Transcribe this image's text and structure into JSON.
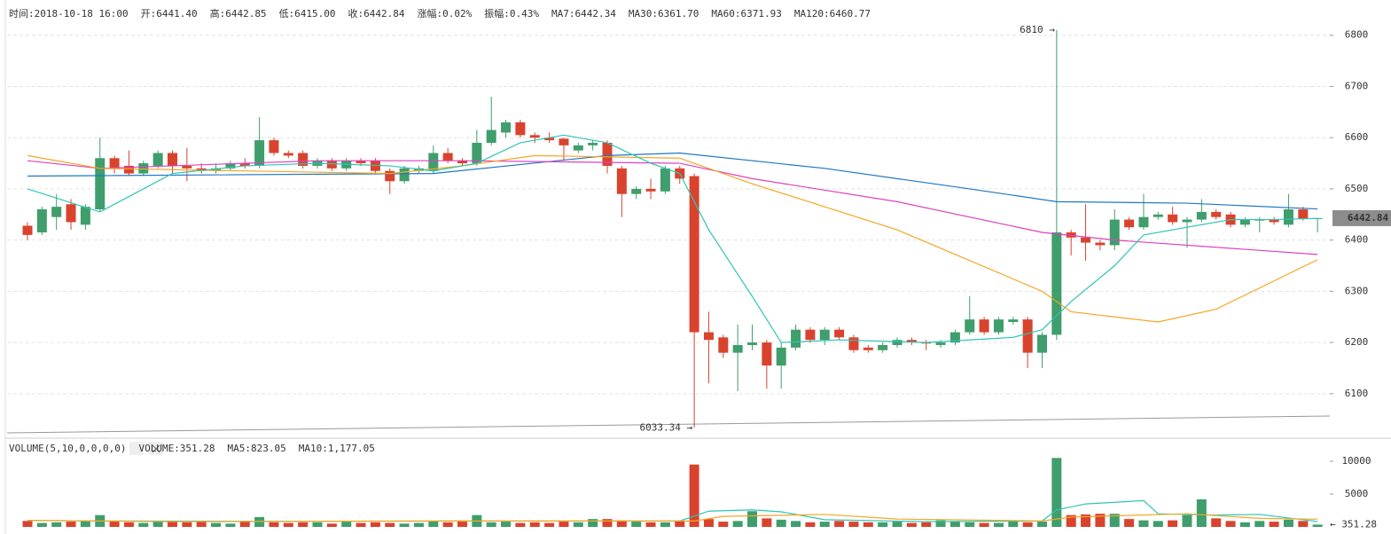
{
  "chart_data": [
    {
      "type": "candlestick",
      "header": [
        {
          "label": "时间:2018-10-18 16:00"
        },
        {
          "label": "开:6441.40"
        },
        {
          "label": "高:6442.85"
        },
        {
          "label": "低:6415.00"
        },
        {
          "label": "收:6442.84"
        },
        {
          "label": "涨幅:",
          "value": "0.02%",
          "color": "#2fa36b"
        },
        {
          "label": "振幅:0.43%"
        },
        {
          "label": "MA7:6442.34",
          "color": "#2ec4b6"
        },
        {
          "label": "MA30:6361.70",
          "color": "#f5a623"
        },
        {
          "label": "MA60:6371.93",
          "color": "#e040c0"
        },
        {
          "label": "MA120:6460.77",
          "color": "#1f77c4"
        }
      ],
      "up_color": "#3f9e6b",
      "down_color": "#d9432e",
      "open": [
        6428,
        6415,
        6445,
        6470,
        6430,
        6460,
        6560,
        6545,
        6530,
        6545,
        6570,
        6545,
        6540,
        6535,
        6540,
        6550,
        6545,
        6595,
        6570,
        6570,
        6545,
        6555,
        6540,
        6555,
        6555,
        6535,
        6515,
        6535,
        6535,
        6570,
        6555,
        6550,
        6590,
        6610,
        6630,
        6605,
        6600,
        6598,
        6575,
        6585,
        6590,
        6540,
        6490,
        6500,
        6495,
        6540,
        6525,
        6220,
        6210,
        6180,
        6195,
        6200,
        6155,
        6190,
        6225,
        6205,
        6225,
        6210,
        6190,
        6185,
        6195,
        6205,
        6200,
        6195,
        6200,
        6220,
        6245,
        6220,
        6240,
        6245,
        6180,
        6215,
        6415,
        6405,
        6395,
        6390,
        6440,
        6425,
        6445,
        6450,
        6435,
        6440,
        6455,
        6450,
        6430,
        6438,
        6440,
        6430,
        6460,
        6441.4
      ],
      "high": [
        6435,
        6465,
        6490,
        6480,
        6470,
        6600,
        6565,
        6575,
        6555,
        6575,
        6575,
        6580,
        6550,
        6550,
        6555,
        6560,
        6640,
        6600,
        6575,
        6575,
        6560,
        6560,
        6560,
        6560,
        6560,
        6540,
        6545,
        6545,
        6585,
        6580,
        6560,
        6615,
        6680,
        6635,
        6635,
        6610,
        6610,
        6600,
        6590,
        6595,
        6595,
        6545,
        6505,
        6520,
        6545,
        6545,
        6530,
        6260,
        6215,
        6235,
        6235,
        6205,
        6200,
        6235,
        6230,
        6230,
        6230,
        6215,
        6195,
        6200,
        6210,
        6210,
        6205,
        6205,
        6225,
        6290,
        6250,
        6250,
        6250,
        6250,
        6220,
        6810,
        6420,
        6470,
        6400,
        6460,
        6445,
        6490,
        6455,
        6465,
        6445,
        6480,
        6460,
        6455,
        6445,
        6445,
        6445,
        6490,
        6465,
        6442.85
      ],
      "low": [
        6400,
        6410,
        6420,
        6420,
        6420,
        6455,
        6530,
        6525,
        6525,
        6540,
        6530,
        6515,
        6530,
        6530,
        6535,
        6540,
        6540,
        6565,
        6560,
        6540,
        6540,
        6535,
        6535,
        6545,
        6530,
        6490,
        6510,
        6530,
        6530,
        6550,
        6545,
        6545,
        6585,
        6600,
        6600,
        6590,
        6590,
        6555,
        6570,
        6575,
        6530,
        6445,
        6480,
        6480,
        6490,
        6510,
        6033.34,
        6120,
        6170,
        6105,
        6185,
        6110,
        6110,
        6185,
        6200,
        6195,
        6205,
        6180,
        6180,
        6180,
        6190,
        6195,
        6185,
        6190,
        6195,
        6215,
        6215,
        6215,
        6235,
        6150,
        6150,
        6205,
        6370,
        6360,
        6380,
        6380,
        6420,
        6420,
        6440,
        6430,
        6385,
        6435,
        6440,
        6425,
        6425,
        6415,
        6430,
        6425,
        6438,
        6415
      ],
      "close": [
        6410,
        6460,
        6465,
        6435,
        6465,
        6560,
        6540,
        6530,
        6550,
        6570,
        6545,
        6540,
        6535,
        6540,
        6550,
        6545,
        6595,
        6570,
        6565,
        6545,
        6555,
        6540,
        6555,
        6550,
        6535,
        6515,
        6540,
        6540,
        6570,
        6555,
        6550,
        6590,
        6615,
        6630,
        6605,
        6600,
        6595,
        6585,
        6585,
        6590,
        6545,
        6490,
        6500,
        6495,
        6540,
        6520,
        6220,
        6205,
        6180,
        6195,
        6200,
        6155,
        6190,
        6225,
        6205,
        6225,
        6210,
        6185,
        6185,
        6195,
        6205,
        6200,
        6198,
        6200,
        6220,
        6245,
        6220,
        6245,
        6245,
        6180,
        6215,
        6415,
        6405,
        6395,
        6390,
        6440,
        6425,
        6445,
        6450,
        6435,
        6440,
        6455,
        6445,
        6430,
        6440,
        6440,
        6435,
        6460,
        6441,
        6442.84
      ],
      "series": [
        {
          "name": "MA120",
          "color": "#1f77c4",
          "x": [
            0,
            28,
            40,
            45,
            55,
            65,
            71,
            80,
            89
          ],
          "values": [
            6525,
            6530,
            6565,
            6570,
            6540,
            6500,
            6475,
            6472,
            6460.77
          ]
        },
        {
          "name": "MA60",
          "color": "#e040c0",
          "x": [
            0,
            5,
            20,
            30,
            45,
            50,
            60,
            70,
            75,
            89
          ],
          "values": [
            6555,
            6540,
            6555,
            6555,
            6550,
            6520,
            6475,
            6415,
            6400,
            6371.93
          ]
        },
        {
          "name": "MA30",
          "color": "#f5a623",
          "x": [
            0,
            5,
            25,
            30,
            35,
            45,
            50,
            60,
            70,
            72,
            78,
            82,
            89
          ],
          "values": [
            6565,
            6540,
            6530,
            6545,
            6565,
            6560,
            6510,
            6420,
            6300,
            6260,
            6240,
            6265,
            6361.7
          ]
        },
        {
          "name": "MA7",
          "color": "#2ec4b6",
          "x": [
            0,
            5,
            10,
            15,
            20,
            25,
            28,
            31,
            34,
            37,
            40,
            43,
            45,
            47,
            50,
            52,
            56,
            62,
            68,
            70,
            72,
            75,
            77,
            80,
            83,
            86,
            89
          ],
          "values": [
            6500,
            6455,
            6530,
            6545,
            6550,
            6545,
            6535,
            6550,
            6590,
            6605,
            6590,
            6550,
            6530,
            6420,
            6290,
            6200,
            6205,
            6200,
            6210,
            6225,
            6280,
            6350,
            6410,
            6425,
            6440,
            6440,
            6442.34
          ]
        }
      ],
      "ylim": [
        6020,
        6855
      ],
      "yticks": [
        6100,
        6200,
        6300,
        6400,
        6500,
        6600,
        6700,
        6800
      ],
      "grid": true,
      "annotations": [
        {
          "text": "6810 →",
          "value": 6810
        },
        {
          "text": "6033.34 →",
          "value": 6033.34
        }
      ],
      "last_price_label": "6442.84"
    },
    {
      "type": "bar",
      "header": [
        {
          "label": "VOLUME(5,10,0,0,0,0)"
        },
        {
          "label": "VOLUME:351.28"
        },
        {
          "label": "MA5:823.05",
          "color": "#2ec4b6"
        },
        {
          "label": "MA10:1,177.05",
          "color": "#f5a623"
        }
      ],
      "values": [
        900,
        600,
        700,
        800,
        900,
        1800,
        900,
        700,
        600,
        900,
        800,
        700,
        800,
        600,
        500,
        800,
        1500,
        700,
        600,
        700,
        700,
        500,
        800,
        600,
        700,
        600,
        500,
        600,
        900,
        700,
        800,
        1800,
        700,
        800,
        600,
        700,
        600,
        800,
        700,
        1200,
        1200,
        1000,
        800,
        700,
        700,
        900,
        9500,
        1200,
        800,
        900,
        2400,
        1300,
        1100,
        900,
        700,
        800,
        900,
        800,
        700,
        700,
        800,
        600,
        700,
        1000,
        800,
        700,
        600,
        600,
        900,
        700,
        800,
        10500,
        1800,
        1900,
        2000,
        2000,
        1200,
        1000,
        900,
        1000,
        1800,
        4200,
        1300,
        900,
        700,
        900,
        800,
        1100,
        900,
        351.28
      ],
      "series": [
        {
          "name": "MA5",
          "color": "#2ec4b6",
          "x": [
            0,
            5,
            15,
            30,
            45,
            47,
            50,
            52,
            55,
            62,
            70,
            71,
            73,
            77,
            78,
            82,
            85,
            89
          ],
          "values": [
            1000,
            900,
            850,
            900,
            900,
            2400,
            2600,
            2300,
            1100,
            800,
            900,
            2600,
            3500,
            4000,
            2000,
            1800,
            1900,
            823.05
          ]
        },
        {
          "name": "MA10",
          "color": "#f5a623",
          "x": [
            0,
            10,
            30,
            46,
            48,
            55,
            60,
            70,
            72,
            80,
            85,
            89
          ],
          "values": [
            1000,
            800,
            900,
            900,
            1600,
            1900,
            1200,
            900,
            1500,
            2000,
            1300,
            1177.05
          ]
        }
      ],
      "ylim": [
        0,
        11080
      ],
      "yticks": [
        5000,
        10000
      ],
      "annotations": [
        {
          "text": "← 351.28",
          "value": 351.28
        }
      ]
    }
  ]
}
